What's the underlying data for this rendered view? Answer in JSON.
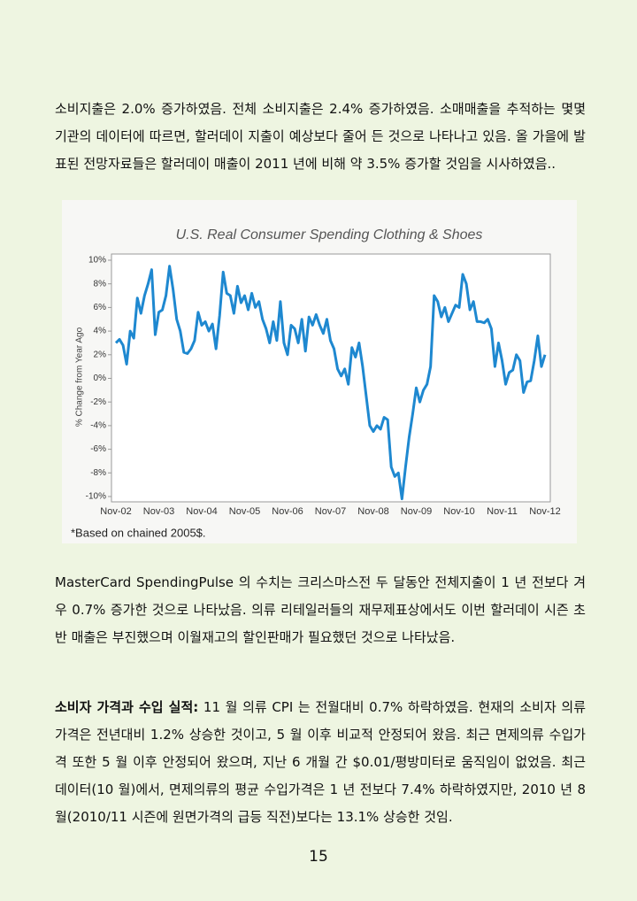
{
  "paragraphs": [
    "소비지출은 2.0% 증가하였음. 전체 소비지출은 2.4% 증가하였음. 소매매출을 추적하는 몇몇 기관의 데이터에 따르면, 할러데이 지출이 예상보다 줄어 든 것으로 나타나고 있음. 올 가을에 발표된 전망자료들은 할러데이 매출이 2011 년에 비해 약 3.5% 증가할 것임을 시사하였음..",
    "MasterCard SpendingPulse 의 수치는 크리스마스전 두 달동안 전체지출이 1 년 전보다 겨우 0.7% 증가한 것으로 나타났음. 의류 리테일러들의 재무제표상에서도 이번 할러데이 시즌 초반 매출은 부진했으며 이월재고의 할인판매가 필요했던 것으로 나타났음."
  ],
  "section": {
    "heading": "소비자 가격과 수입 실적:",
    "text": "11 월 의류 CPI 는 전월대비 0.7% 하락하였음. 현재의 소비자 의류 가격은 전년대비 1.2% 상승한 것이고, 5 월 이후 비교적 안정되어 왔음. 최근 면제의류 수입가격 또한 5 월 이후 안정되어 왔으며, 지난 6 개월 간 $0.01/평방미터로 움직임이 없었음. 최근 데이터(10 월)에서, 면제의류의 평균 수입가격은 1 년 전보다 7.4% 하락하였지만, 2010 년 8 월(2010/11 시즌에 원면가격의 급등 직전)보다는 13.1% 상승한 것임."
  },
  "page_number": "15",
  "chart_data": {
    "type": "line",
    "title": "U.S. Real Consumer Spending Clothing & Shoes",
    "y_label": "% Change from Year Ago",
    "note": "*Based on chained 2005$.",
    "color": "#1e88d0",
    "categories": [
      "Nov-02",
      null,
      null,
      null,
      null,
      null,
      null,
      null,
      null,
      null,
      null,
      null,
      "Nov-03",
      null,
      null,
      null,
      null,
      null,
      null,
      null,
      null,
      null,
      null,
      null,
      "Nov-04",
      null,
      null,
      null,
      null,
      null,
      null,
      null,
      null,
      null,
      null,
      null,
      "Nov-05",
      null,
      null,
      null,
      null,
      null,
      null,
      null,
      null,
      null,
      null,
      null,
      "Nov-06",
      null,
      null,
      null,
      null,
      null,
      null,
      null,
      null,
      null,
      null,
      null,
      "Nov-07",
      null,
      null,
      null,
      null,
      null,
      null,
      null,
      null,
      null,
      null,
      null,
      "Nov-08",
      null,
      null,
      null,
      null,
      null,
      null,
      null,
      null,
      null,
      null,
      null,
      "Nov-09",
      null,
      null,
      null,
      null,
      null,
      null,
      null,
      null,
      null,
      null,
      null,
      "Nov-10",
      null,
      null,
      null,
      null,
      null,
      null,
      null,
      null,
      null,
      null,
      null,
      "Nov-11",
      null,
      null,
      null,
      null,
      null,
      null,
      null,
      null,
      null,
      null,
      null,
      "Nov-12"
    ],
    "values": [
      3.0,
      3.3,
      2.8,
      1.2,
      4.0,
      3.4,
      6.8,
      5.5,
      7.0,
      8.0,
      9.2,
      3.7,
      5.6,
      5.8,
      7.0,
      9.5,
      7.5,
      5.0,
      4.0,
      2.2,
      2.1,
      2.5,
      3.2,
      5.6,
      4.5,
      4.8,
      4.0,
      4.6,
      2.5,
      5.3,
      9.0,
      7.2,
      7.0,
      5.5,
      7.8,
      6.4,
      7.0,
      5.8,
      7.2,
      6.0,
      6.5,
      5.0,
      4.2,
      3.0,
      4.8,
      3.2,
      6.5,
      3.0,
      2.0,
      4.5,
      4.2,
      3.0,
      5.0,
      2.3,
      5.2,
      4.5,
      5.4,
      4.5,
      3.8,
      5.0,
      3.2,
      2.5,
      0.8,
      0.2,
      0.8,
      -0.5,
      2.6,
      1.8,
      3.0,
      1.0,
      -1.5,
      -4.0,
      -4.5,
      -4.0,
      -4.3,
      -3.3,
      -3.5,
      -7.5,
      -8.3,
      -8.0,
      -10.2,
      -7.5,
      -5.0,
      -3.0,
      -0.8,
      -2.0,
      -1.0,
      -0.5,
      1.0,
      7.0,
      6.5,
      5.2,
      6.0,
      4.8,
      5.5,
      6.2,
      6.0,
      8.8,
      8.0,
      5.8,
      6.5,
      4.8,
      4.8,
      4.7,
      5.0,
      4.2,
      1.0,
      3.0,
      1.5,
      -0.5,
      0.5,
      0.7,
      2.0,
      1.5,
      -1.2,
      -0.3,
      -0.2,
      1.5,
      3.6,
      1.0,
      2.0
    ],
    "ylim": [
      -10,
      10
    ],
    "yticks": [
      {
        "value": 10,
        "label": "10%"
      },
      {
        "value": 8,
        "label": "8%"
      },
      {
        "value": 6,
        "label": "6%"
      },
      {
        "value": 4,
        "label": "4%"
      },
      {
        "value": 2,
        "label": "2%"
      },
      {
        "value": 0,
        "label": "0%"
      },
      {
        "value": -2,
        "label": "-2%"
      },
      {
        "value": -4,
        "label": "-4%"
      },
      {
        "value": -6,
        "label": "-6%"
      },
      {
        "value": -8,
        "label": "-8%"
      },
      {
        "value": -10,
        "label": "-10%"
      }
    ]
  }
}
